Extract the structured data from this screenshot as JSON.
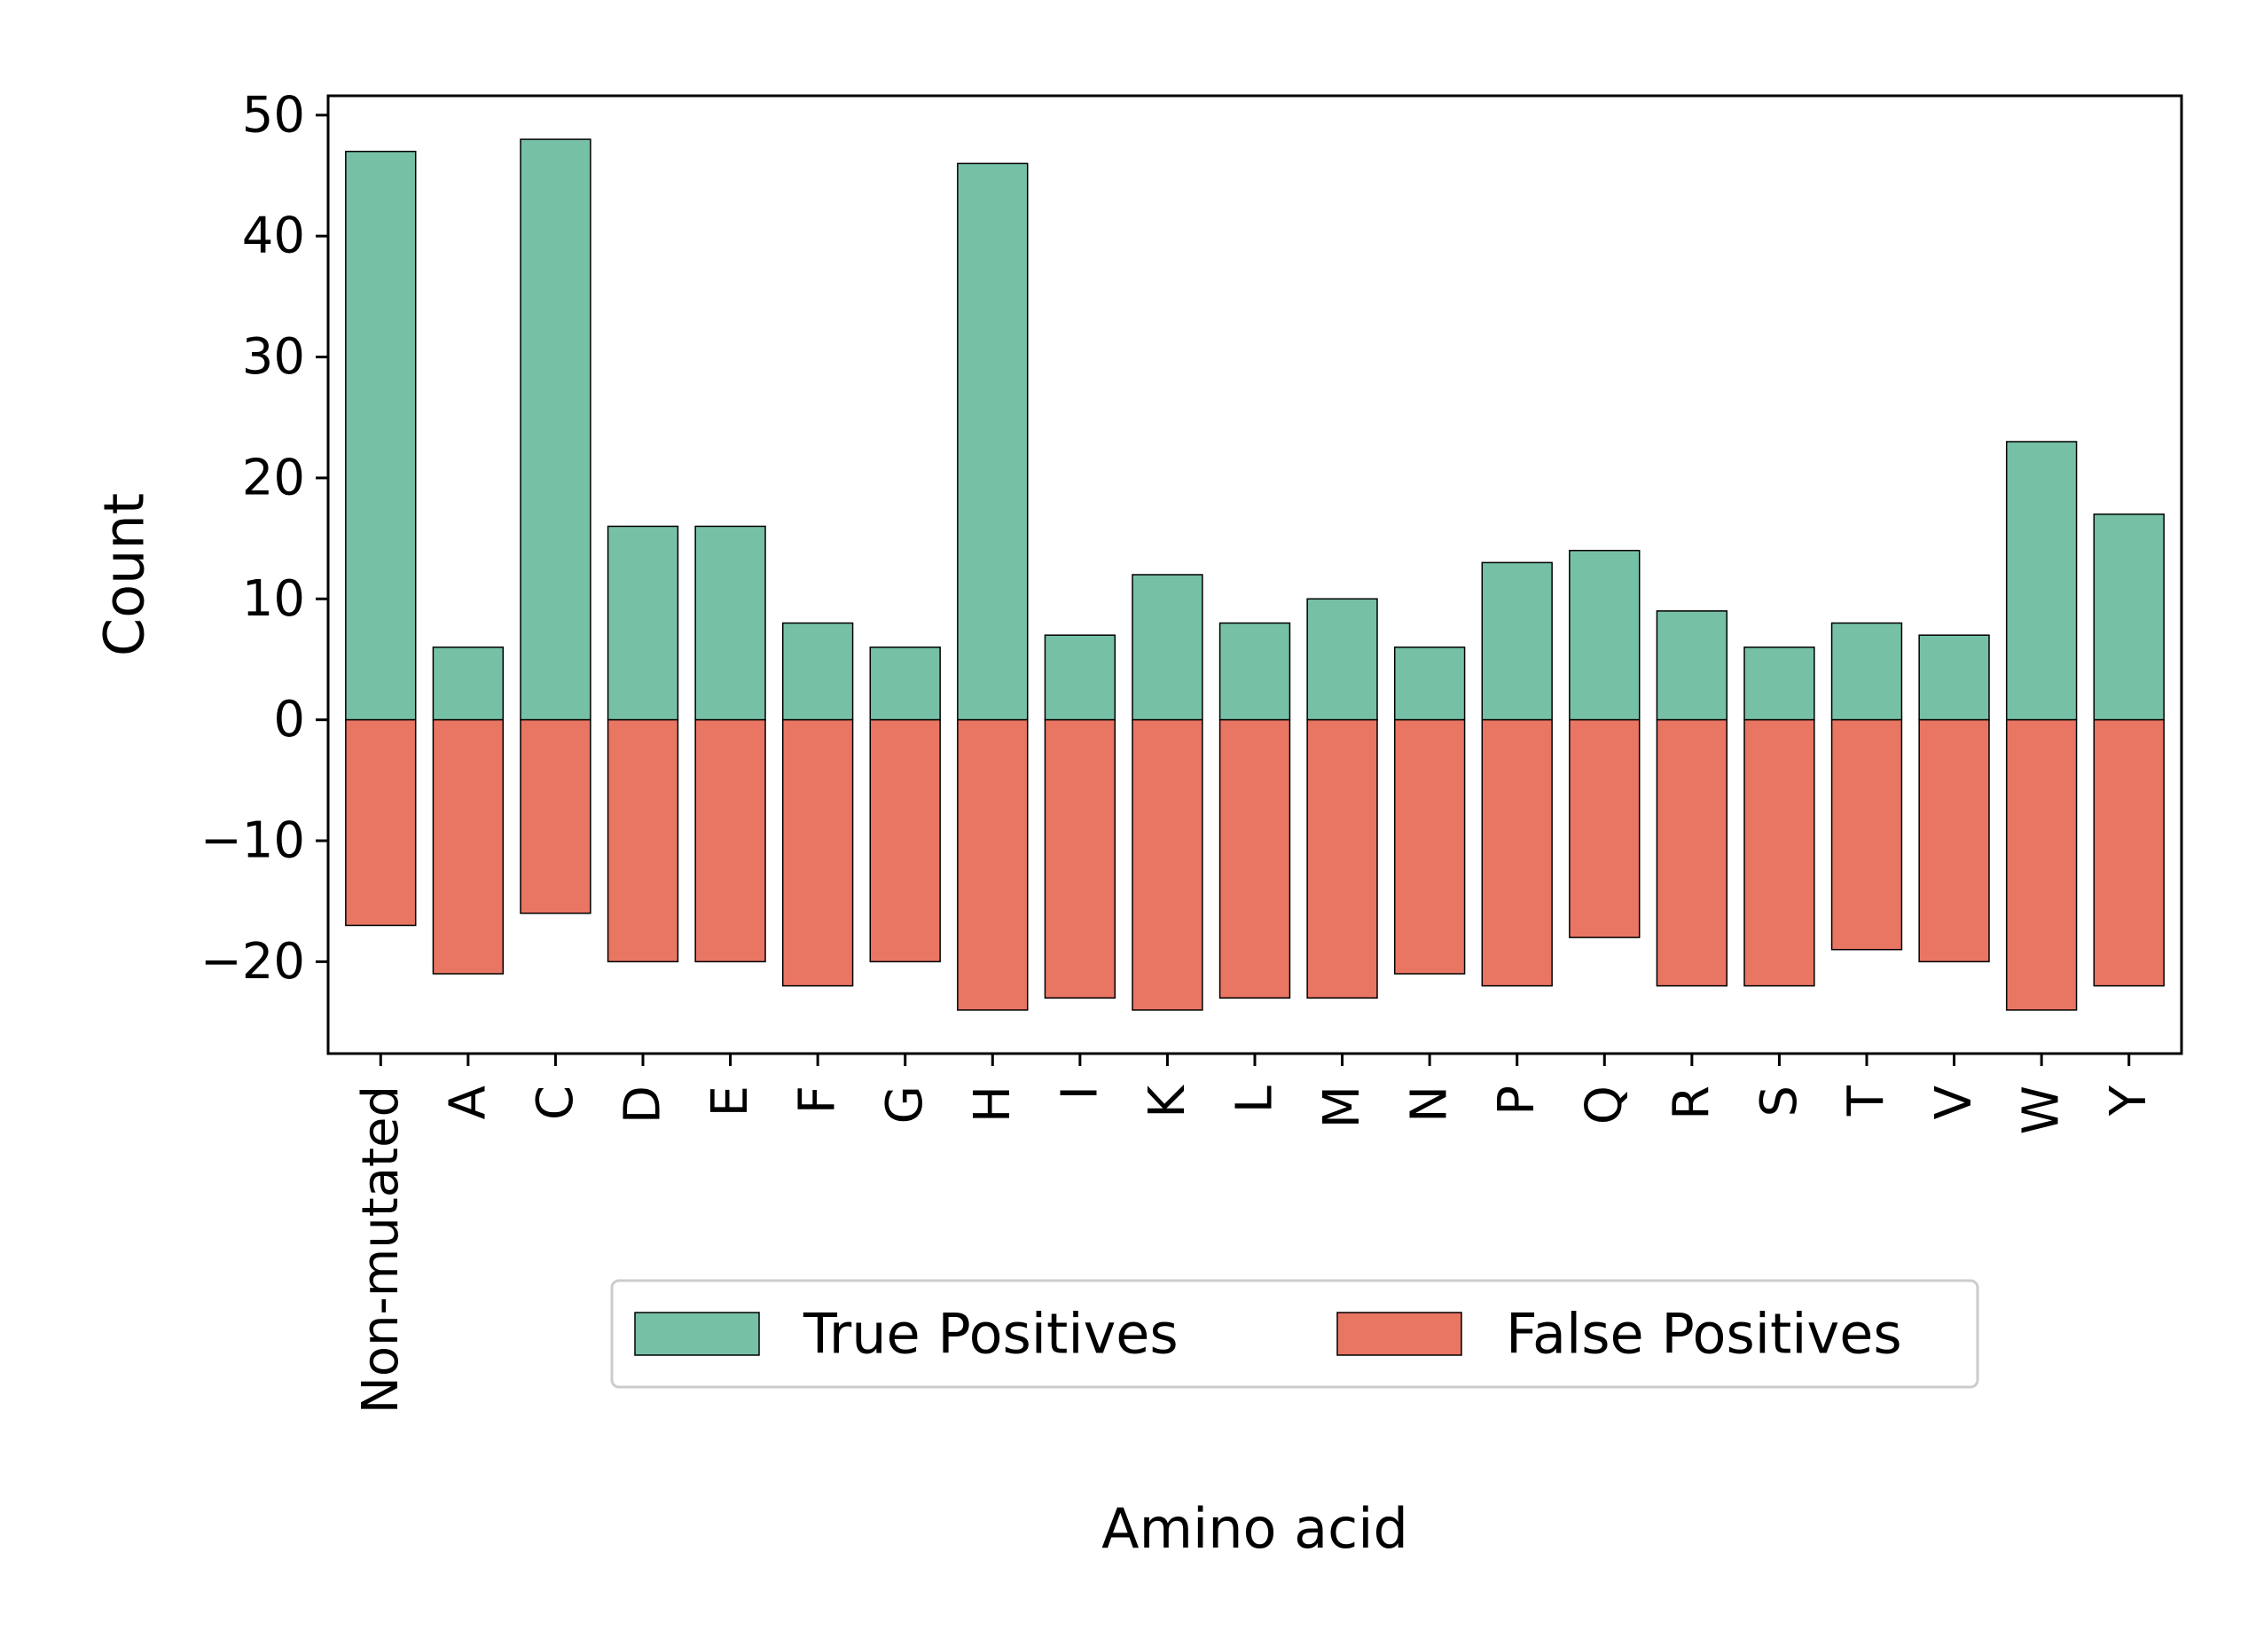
{
  "chart_data": {
    "type": "bar",
    "title": "",
    "xlabel": "Amino acid",
    "ylabel": "Count",
    "categories": [
      "Non-mutated",
      "A",
      "C",
      "D",
      "E",
      "F",
      "G",
      "H",
      "I",
      "K",
      "L",
      "M",
      "N",
      "P",
      "Q",
      "R",
      "S",
      "T",
      "V",
      "W",
      "Y"
    ],
    "series": [
      {
        "name": "True Positives",
        "color": "#76c1a6",
        "values": [
          47,
          6,
          48,
          16,
          16,
          8,
          6,
          46,
          7,
          12,
          8,
          10,
          6,
          13,
          14,
          9,
          6,
          8,
          7,
          23,
          17
        ]
      },
      {
        "name": "False Positives",
        "color": "#e97563",
        "values": [
          -17,
          -21,
          -16,
          -20,
          -20,
          -22,
          -20,
          -24,
          -23,
          -24,
          -23,
          -23,
          -21,
          -22,
          -18,
          -22,
          -22,
          -19,
          -20,
          -24,
          -22
        ]
      }
    ],
    "ylim": [
      -27.6,
      51.6
    ],
    "yticks": [
      -20,
      -10,
      0,
      10,
      20,
      30,
      40,
      50
    ],
    "ytick_labels": [
      "−20",
      "−10",
      "0",
      "10",
      "20",
      "30",
      "40",
      "50"
    ],
    "stacked": true,
    "grid": false,
    "legend_position": "bottom-center"
  }
}
